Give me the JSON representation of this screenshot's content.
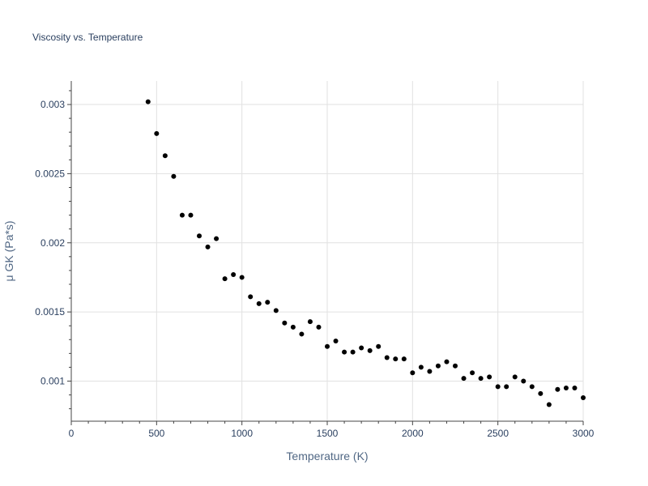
{
  "chart_data": {
    "type": "scatter",
    "title": "Viscosity vs. Temperature",
    "xlabel": "Temperature (K)",
    "ylabel": "μ GK (Pa*s)",
    "xlim": [
      0,
      3000
    ],
    "ylim": [
      0.00071,
      0.00317
    ],
    "xticks": [
      0,
      500,
      1000,
      1500,
      2000,
      2500,
      3000
    ],
    "yticks": [
      0.001,
      0.0015,
      0.002,
      0.0025,
      0.003
    ],
    "xtick_labels": [
      "0",
      "500",
      "1000",
      "1500",
      "2000",
      "2500",
      "3000"
    ],
    "ytick_labels": [
      "0.001",
      "0.0015",
      "0.002",
      "0.0025",
      "0.003"
    ],
    "grid": true,
    "marker_color": "#000000",
    "series": [
      {
        "x": [
          450,
          500,
          550,
          600,
          650,
          700,
          750,
          800,
          850,
          900,
          950,
          1000,
          1050,
          1100,
          1150,
          1200,
          1250,
          1300,
          1350,
          1400,
          1450,
          1500,
          1550,
          1600,
          1650,
          1700,
          1750,
          1800,
          1850,
          1900,
          1950,
          2000,
          2050,
          2100,
          2150,
          2200,
          2250,
          2300,
          2350,
          2400,
          2450,
          2500,
          2550,
          2600,
          2650,
          2700,
          2750,
          2800,
          2850,
          2900,
          2950,
          3000
        ],
        "y": [
          0.00302,
          0.00279,
          0.00263,
          0.00248,
          0.0022,
          0.0022,
          0.00205,
          0.00197,
          0.00203,
          0.00174,
          0.00177,
          0.00175,
          0.00161,
          0.00156,
          0.00157,
          0.00151,
          0.00142,
          0.00139,
          0.00134,
          0.00143,
          0.00139,
          0.00125,
          0.00129,
          0.00121,
          0.00121,
          0.00124,
          0.00122,
          0.00125,
          0.00117,
          0.00116,
          0.00116,
          0.00106,
          0.0011,
          0.00107,
          0.00111,
          0.00114,
          0.00111,
          0.00102,
          0.00106,
          0.00102,
          0.00103,
          0.00096,
          0.00096,
          0.00103,
          0.001,
          0.00096,
          0.00091,
          0.00083,
          0.00094,
          0.00095,
          0.00095,
          0.00088
        ]
      }
    ]
  }
}
